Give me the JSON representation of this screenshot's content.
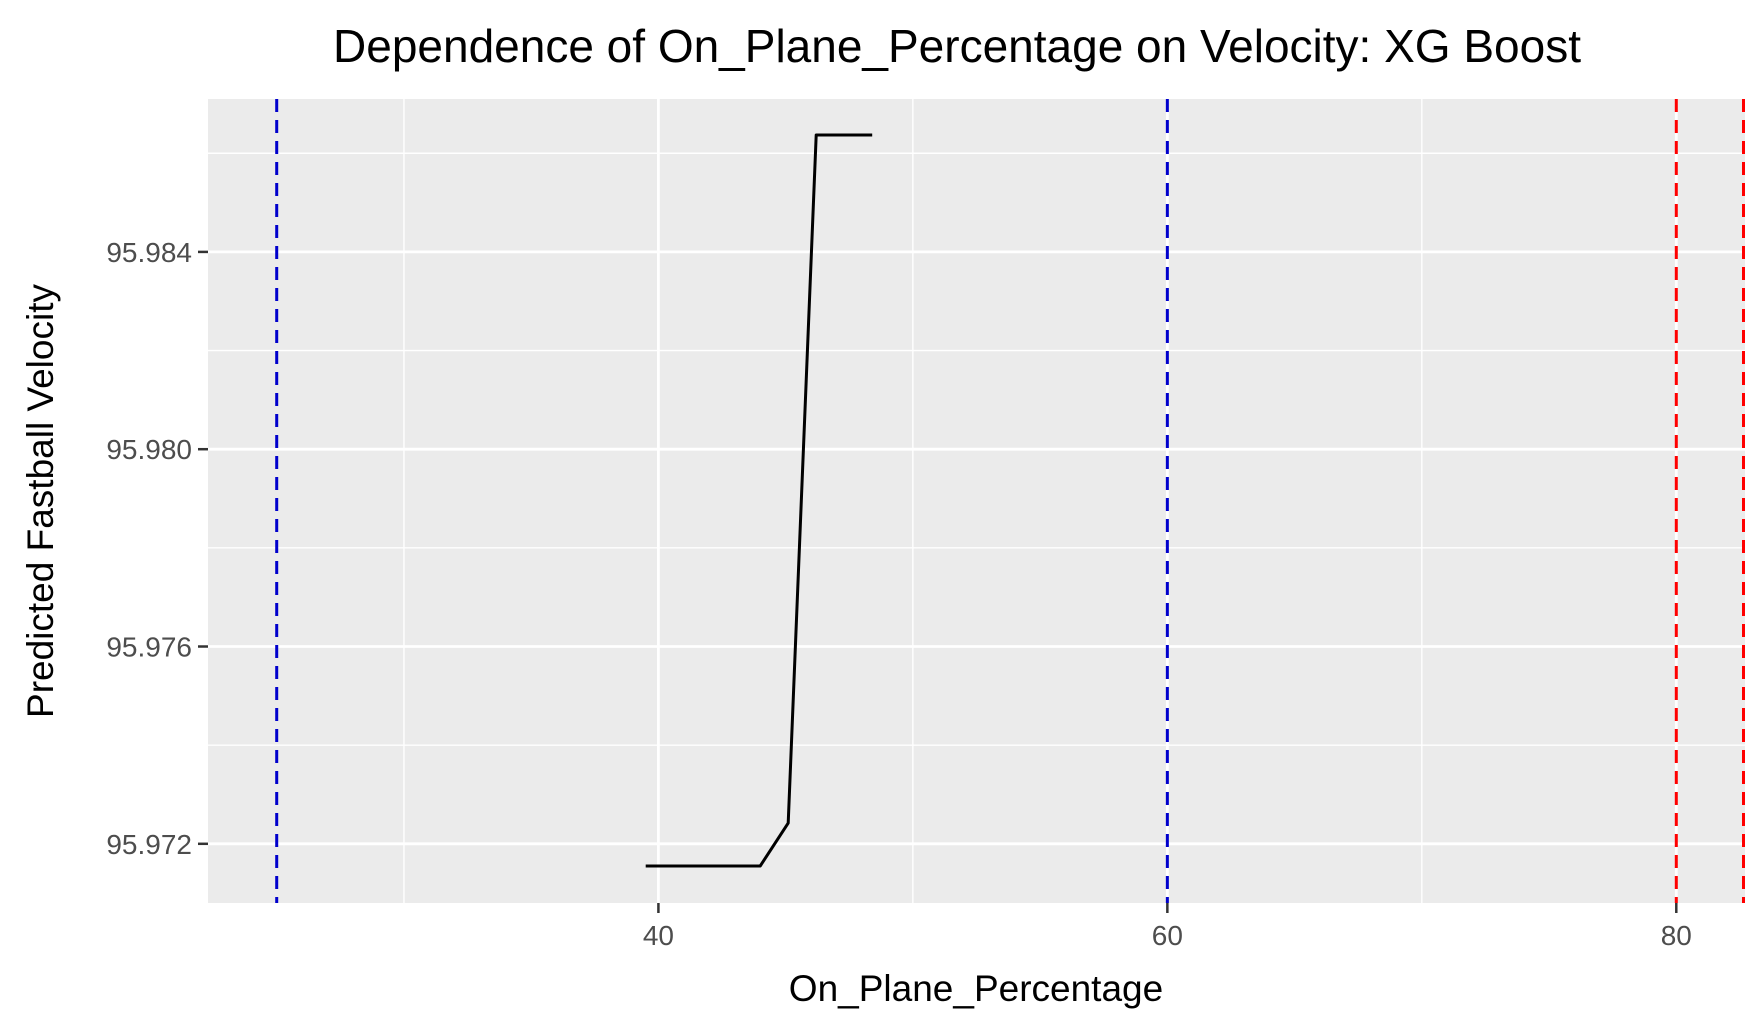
{
  "chart_data": {
    "type": "line",
    "title": "Dependence of On_Plane_Percentage on Velocity: XG Boost",
    "xlabel": "On_Plane_Percentage",
    "ylabel": "Predicted Fastball Velocity",
    "xlim": [
      22.3,
      82.7
    ],
    "ylim": [
      95.9708,
      95.9871
    ],
    "x_ticks": [
      40,
      60,
      80
    ],
    "x_tick_labels": [
      "40",
      "60",
      "80"
    ],
    "y_ticks": [
      95.972,
      95.976,
      95.98,
      95.984
    ],
    "y_tick_labels": [
      "95.972",
      "95.976",
      "95.980",
      "95.984"
    ],
    "x_minor_gridlines": [
      30,
      50,
      70
    ],
    "y_minor_gridlines": [
      95.974,
      95.978,
      95.982,
      95.986
    ],
    "grid": true,
    "background": "#ebebeb",
    "gridline_color": "#ffffff",
    "line_color": "#000000",
    "series": [
      {
        "x": [
          39.5,
          44.0,
          45.1,
          46.2,
          48.4
        ],
        "y": [
          95.97155,
          95.97155,
          95.97242,
          95.98637,
          95.98637
        ]
      }
    ],
    "vlines": [
      {
        "x": 25.0,
        "color": "#0000cc"
      },
      {
        "x": 60.0,
        "color": "#0000cc"
      },
      {
        "x": 80.0,
        "color": "#ff0000"
      },
      {
        "x": 82.7,
        "color": "#ff0000"
      }
    ]
  }
}
